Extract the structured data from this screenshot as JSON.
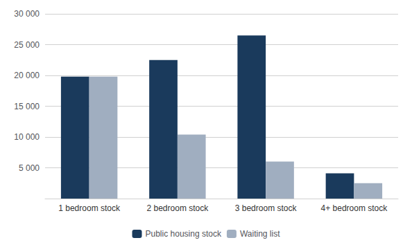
{
  "chart_data": {
    "type": "bar",
    "categories": [
      "1 bedroom stock",
      "2 bedroom stock",
      "3 bedroom stock",
      "4+ bedroom stock"
    ],
    "series": [
      {
        "name": "Public housing stock",
        "color": "#1a3a5c",
        "values": [
          19800,
          22500,
          26500,
          4100
        ]
      },
      {
        "name": "Waiting list",
        "color": "#a0aec0",
        "values": [
          19800,
          10400,
          6000,
          2500
        ]
      }
    ],
    "ylim": [
      0,
      30000
    ],
    "yticks": [
      {
        "value": 5000,
        "label": "5 000"
      },
      {
        "value": 10000,
        "label": "10 000"
      },
      {
        "value": 15000,
        "label": "15 000"
      },
      {
        "value": 20000,
        "label": "20 000"
      },
      {
        "value": 25000,
        "label": "25 000"
      },
      {
        "value": 30000,
        "label": "30 000"
      }
    ],
    "grid": true,
    "legend": "bottom"
  }
}
